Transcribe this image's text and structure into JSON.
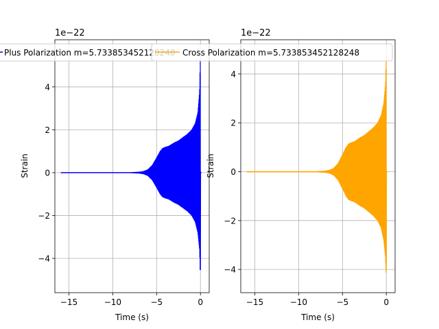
{
  "chart_data": [
    {
      "type": "line",
      "xlabel": "Time (s)",
      "ylabel": "Strain",
      "offset_label": "1e−22",
      "xlim": [
        -16.6,
        1.0
      ],
      "ylim": [
        -5.6,
        6.2
      ],
      "xticks": [
        -15,
        -10,
        -5,
        0
      ],
      "xtick_labels": [
        "−15",
        "−10",
        "−5",
        "0"
      ],
      "yticks": [
        -4,
        -2,
        0,
        2,
        4
      ],
      "ytick_labels": [
        "−4",
        "−2",
        "0",
        "2",
        "4"
      ],
      "grid": true,
      "legend": "top-center",
      "series": [
        {
          "name": "Plus Polarization m=5.733853452128248",
          "color": "#0000ff",
          "x": [
            -15.9,
            -8.0,
            -7.0,
            -6.5,
            -6.0,
            -5.5,
            -5.0,
            -4.6,
            -4.3,
            -4.0,
            -3.6,
            -3.0,
            -2.5,
            -2.0,
            -1.5,
            -1.0,
            -0.6,
            -0.3,
            -0.1,
            0.0,
            0.02,
            0.1
          ],
          "envelope": [
            0.02,
            0.02,
            0.04,
            0.07,
            0.15,
            0.35,
            0.7,
            1.0,
            1.15,
            1.2,
            1.25,
            1.4,
            1.5,
            1.65,
            1.8,
            2.0,
            2.3,
            2.8,
            3.8,
            5.8,
            0.02,
            0.0
          ],
          "envelope_min": [
            -0.02,
            -0.02,
            -0.04,
            -0.07,
            -0.15,
            -0.35,
            -0.7,
            -1.0,
            -1.15,
            -1.2,
            -1.25,
            -1.4,
            -1.5,
            -1.65,
            -1.8,
            -2.0,
            -2.3,
            -2.8,
            -3.6,
            -5.1,
            -0.02,
            0.0
          ]
        }
      ]
    },
    {
      "type": "line",
      "xlabel": "Time (s)",
      "ylabel": "Strain",
      "offset_label": "1e−22",
      "xlim": [
        -16.6,
        1.0
      ],
      "ylim": [
        -4.95,
        5.4
      ],
      "xticks": [
        -15,
        -10,
        -5,
        0
      ],
      "xtick_labels": [
        "−15",
        "−10",
        "−5",
        "0"
      ],
      "yticks": [
        -4,
        -2,
        0,
        2,
        4
      ],
      "ytick_labels": [
        "−4",
        "−2",
        "0",
        "2",
        "4"
      ],
      "grid": true,
      "legend": "top-center",
      "series": [
        {
          "name": "Cross Polarization m=5.733853452128248",
          "color": "#ffa500",
          "x": [
            -15.9,
            -8.0,
            -7.0,
            -6.5,
            -6.0,
            -5.5,
            -5.0,
            -4.6,
            -4.3,
            -4.0,
            -3.6,
            -3.0,
            -2.5,
            -2.0,
            -1.5,
            -1.0,
            -0.6,
            -0.3,
            -0.1,
            0.0,
            0.02,
            0.1
          ],
          "envelope": [
            0.02,
            0.02,
            0.04,
            0.07,
            0.15,
            0.35,
            0.7,
            1.0,
            1.15,
            1.2,
            1.25,
            1.4,
            1.5,
            1.65,
            1.8,
            2.0,
            2.3,
            2.8,
            3.6,
            5.0,
            0.02,
            0.0
          ],
          "envelope_min": [
            -0.02,
            -0.02,
            -0.04,
            -0.07,
            -0.15,
            -0.35,
            -0.7,
            -1.0,
            -1.15,
            -1.2,
            -1.25,
            -1.4,
            -1.5,
            -1.65,
            -1.8,
            -2.0,
            -2.3,
            -2.8,
            -3.5,
            -4.5,
            -0.02,
            0.0
          ]
        }
      ]
    }
  ]
}
